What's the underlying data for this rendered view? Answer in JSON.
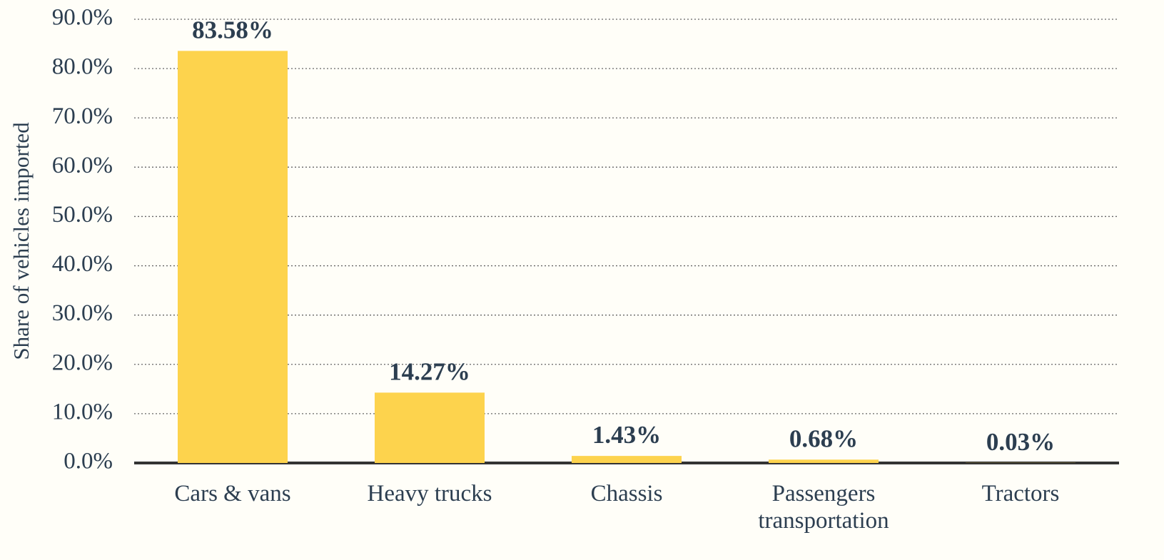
{
  "chart_data": {
    "type": "bar",
    "y_label": "Share of vehicles imported",
    "categories": [
      "Cars & vans",
      "Heavy trucks",
      "Chassis",
      "Passengers transportation",
      "Tractors"
    ],
    "values": [
      83.58,
      14.27,
      1.43,
      0.68,
      0.03
    ],
    "value_labels": [
      "83.58%",
      "14.27%",
      "1.43%",
      "0.68%",
      "0.03%"
    ],
    "color": "#fdd34d",
    "ylim": [
      0,
      90
    ],
    "yticks": [
      {
        "value": 0,
        "label": "0.0%"
      },
      {
        "value": 10,
        "label": "10.0%"
      },
      {
        "value": 20,
        "label": "20.0%"
      },
      {
        "value": 30,
        "label": "30.0%"
      },
      {
        "value": 40,
        "label": "40.0%"
      },
      {
        "value": 50,
        "label": "50.0%"
      },
      {
        "value": 60,
        "label": "60.0%"
      },
      {
        "value": 70,
        "label": "70.0%"
      },
      {
        "value": 80,
        "label": "80.0%"
      },
      {
        "value": 90,
        "label": "90.0%"
      }
    ],
    "grid": true
  }
}
